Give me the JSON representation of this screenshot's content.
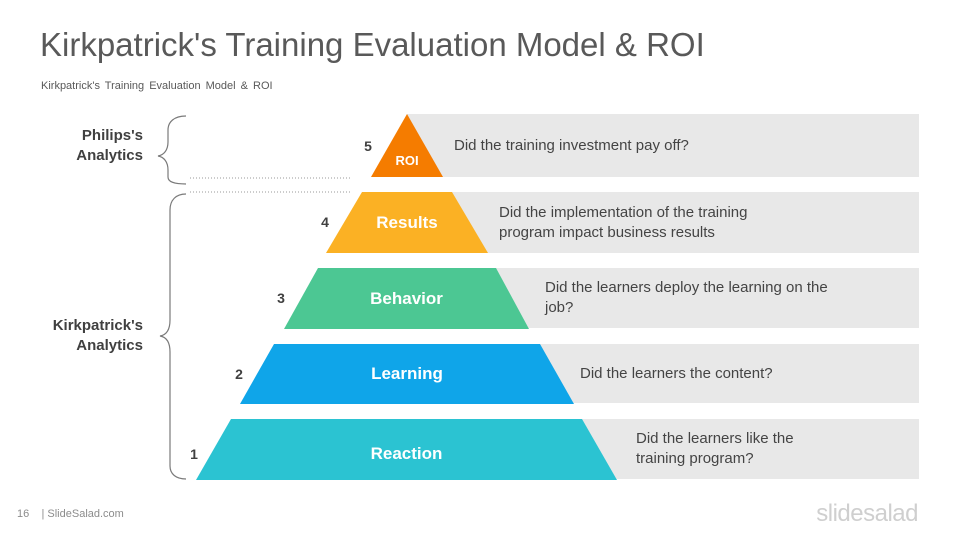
{
  "title": "Kirkpatrick's Training Evaluation Model & ROI",
  "subtitle": "Kirkpatrick's Training Evaluation Model & ROI",
  "groups": {
    "philips": "Philips's\nAnalytics",
    "kirkpatrick": "Kirkpatrick's\nAnalytics"
  },
  "levels": [
    {
      "num": "5",
      "label": "ROI",
      "question": "Did the training investment pay off?",
      "color": "#f57c00"
    },
    {
      "num": "4",
      "label": "Results",
      "question": "Did the implementation of the training program impact business results",
      "color": "#fbb124"
    },
    {
      "num": "3",
      "label": "Behavior",
      "question": "Did the learners deploy the learning on the job?",
      "color": "#4cc793"
    },
    {
      "num": "2",
      "label": "Learning",
      "question": "Did the learners the content?",
      "color": "#0fa5e9"
    },
    {
      "num": "1",
      "label": "Reaction",
      "question": "Did the learners like the training program?",
      "color": "#2bc3d2"
    }
  ],
  "footer": {
    "page": "16",
    "site": "| SlideSalad.com",
    "brand": "slidesalad"
  }
}
